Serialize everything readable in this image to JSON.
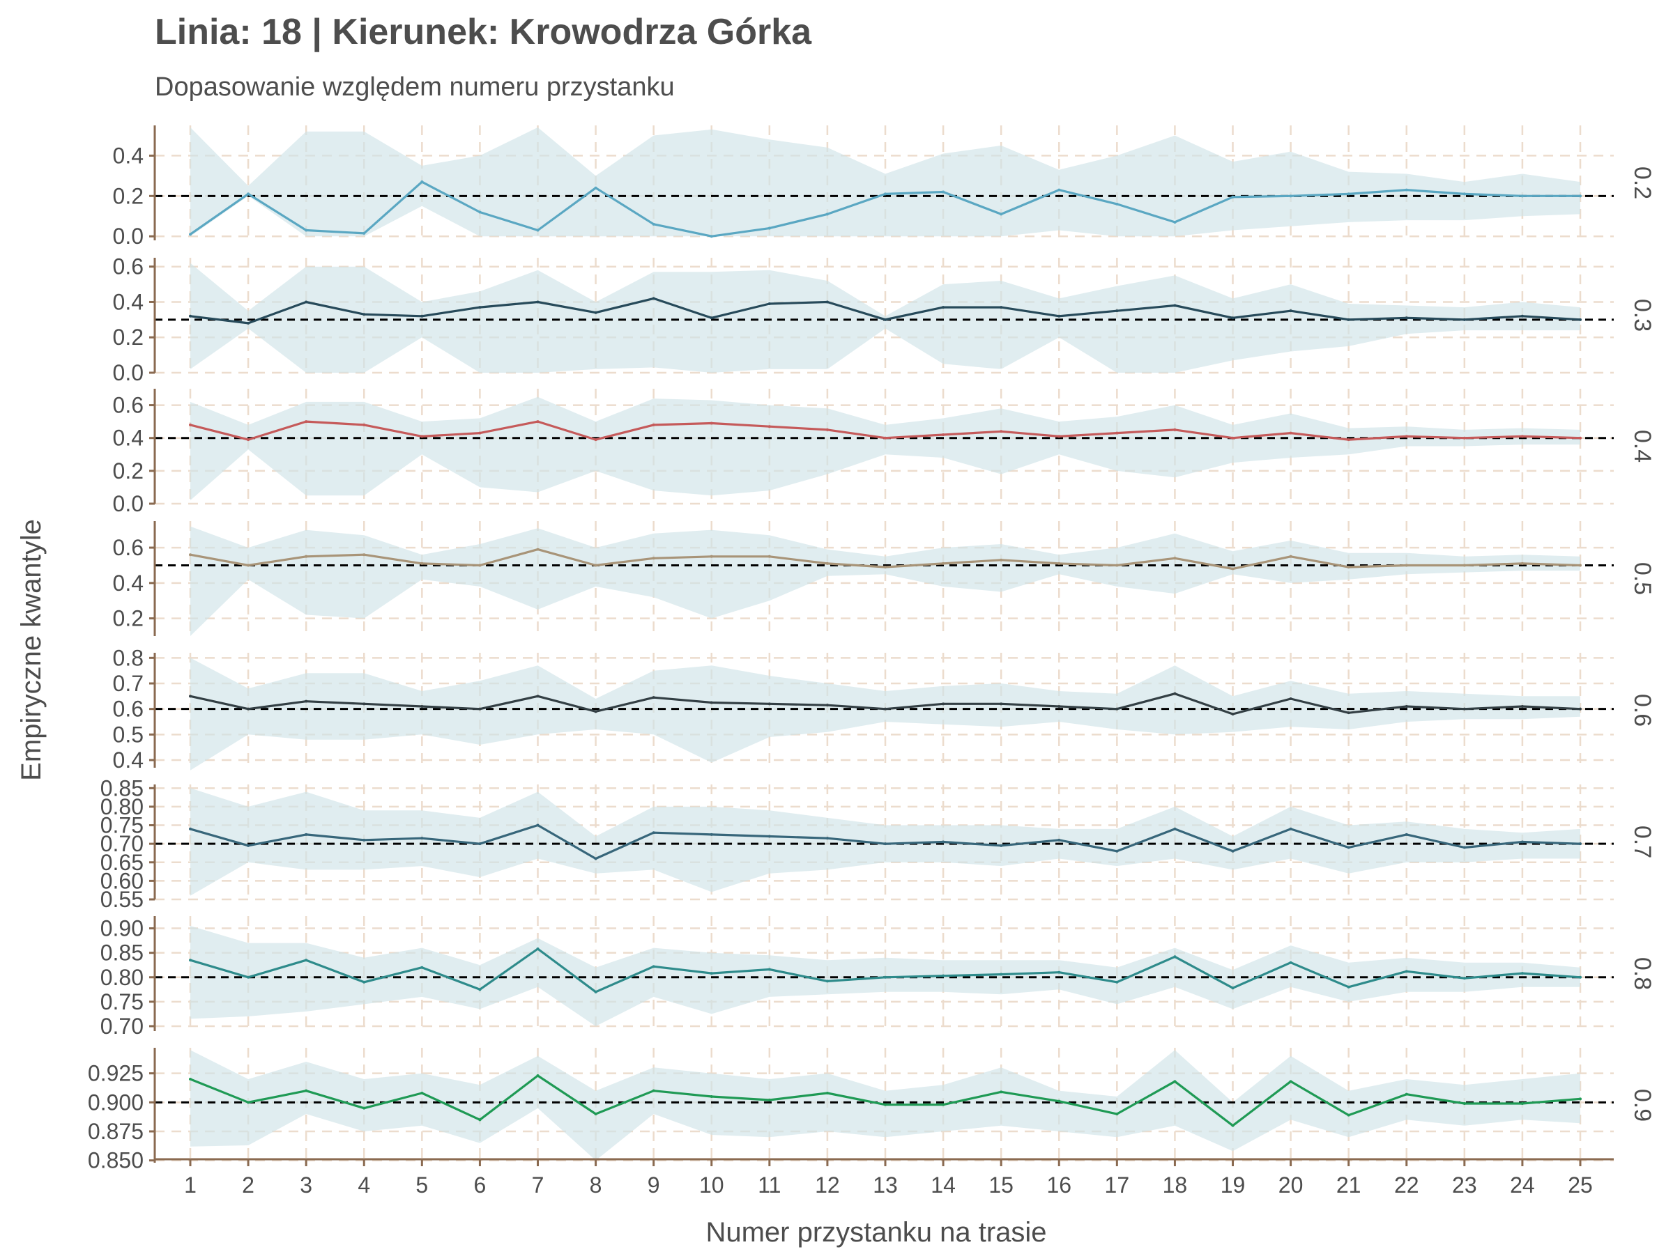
{
  "title": "Linia: 18 | Kierunek: Krowodrza Górka",
  "subtitle": "Dopasowanie względem numeru przystanku",
  "chart_data": {
    "type": "line",
    "xlabel": "Numer przystanku na trasie",
    "ylabel": "Empiryczne kwantyle",
    "x": [
      1,
      2,
      3,
      4,
      5,
      6,
      7,
      8,
      9,
      10,
      11,
      12,
      13,
      14,
      15,
      16,
      17,
      18,
      19,
      20,
      21,
      22,
      23,
      24,
      25
    ],
    "grid": true,
    "band_color": "#cfe3e8",
    "reference_line": "dashed, y equals facet quantile",
    "panels": [
      {
        "facet_label": "0.2",
        "reference": 0.2,
        "color": "#5aa7c2",
        "ylim": [
          -0.02,
          0.55
        ],
        "yticks": [
          "0.0",
          "0.2",
          "0.4"
        ],
        "ytick_values": [
          0.0,
          0.2,
          0.4
        ],
        "values": [
          0.01,
          0.21,
          0.03,
          0.015,
          0.27,
          0.12,
          0.03,
          0.24,
          0.06,
          0.0,
          0.04,
          0.11,
          0.21,
          0.22,
          0.11,
          0.23,
          0.16,
          0.07,
          0.195,
          0.2,
          0.21,
          0.23,
          0.21,
          0.2,
          0.2
        ],
        "band_low": [
          0.0,
          0.2,
          0.0,
          0.0,
          0.15,
          0.0,
          0.0,
          0.0,
          0.0,
          0.0,
          0.0,
          0.0,
          0.0,
          0.0,
          0.0,
          0.03,
          0.0,
          0.0,
          0.03,
          0.05,
          0.07,
          0.08,
          0.08,
          0.1,
          0.11
        ],
        "band_high": [
          0.54,
          0.25,
          0.52,
          0.52,
          0.35,
          0.4,
          0.54,
          0.3,
          0.5,
          0.53,
          0.48,
          0.44,
          0.31,
          0.41,
          0.45,
          0.33,
          0.4,
          0.5,
          0.37,
          0.42,
          0.32,
          0.31,
          0.27,
          0.31,
          0.27
        ]
      },
      {
        "facet_label": "0.3",
        "reference": 0.3,
        "color": "#274a5a",
        "ylim": [
          0.0,
          0.65
        ],
        "yticks": [
          "0.0",
          "0.2",
          "0.4",
          "0.6"
        ],
        "ytick_values": [
          0.0,
          0.2,
          0.4,
          0.6
        ],
        "values": [
          0.32,
          0.28,
          0.4,
          0.33,
          0.32,
          0.37,
          0.4,
          0.34,
          0.42,
          0.31,
          0.39,
          0.4,
          0.3,
          0.37,
          0.37,
          0.32,
          0.35,
          0.38,
          0.31,
          0.35,
          0.3,
          0.31,
          0.3,
          0.32,
          0.3
        ],
        "band_low": [
          0.02,
          0.25,
          0.0,
          0.0,
          0.2,
          0.0,
          0.0,
          0.02,
          0.03,
          0.0,
          0.02,
          0.02,
          0.25,
          0.05,
          0.02,
          0.2,
          0.0,
          0.0,
          0.07,
          0.12,
          0.15,
          0.22,
          0.24,
          0.24,
          0.24
        ],
        "band_high": [
          0.62,
          0.35,
          0.6,
          0.6,
          0.4,
          0.46,
          0.58,
          0.4,
          0.57,
          0.57,
          0.58,
          0.52,
          0.32,
          0.5,
          0.52,
          0.42,
          0.49,
          0.55,
          0.42,
          0.5,
          0.39,
          0.38,
          0.37,
          0.4,
          0.37
        ]
      },
      {
        "facet_label": "0.4",
        "reference": 0.4,
        "color": "#c55a5a",
        "ylim": [
          0.0,
          0.7
        ],
        "yticks": [
          "0.0",
          "0.2",
          "0.4",
          "0.6"
        ],
        "ytick_values": [
          0.0,
          0.2,
          0.4,
          0.6
        ],
        "values": [
          0.48,
          0.39,
          0.5,
          0.48,
          0.41,
          0.43,
          0.5,
          0.39,
          0.48,
          0.49,
          0.47,
          0.45,
          0.4,
          0.42,
          0.44,
          0.41,
          0.43,
          0.45,
          0.4,
          0.43,
          0.39,
          0.41,
          0.4,
          0.41,
          0.4
        ],
        "band_low": [
          0.02,
          0.33,
          0.05,
          0.05,
          0.3,
          0.1,
          0.07,
          0.2,
          0.08,
          0.05,
          0.08,
          0.18,
          0.3,
          0.28,
          0.18,
          0.3,
          0.2,
          0.16,
          0.25,
          0.28,
          0.3,
          0.35,
          0.35,
          0.36,
          0.36
        ],
        "band_high": [
          0.62,
          0.48,
          0.62,
          0.62,
          0.5,
          0.52,
          0.65,
          0.5,
          0.64,
          0.63,
          0.6,
          0.58,
          0.48,
          0.52,
          0.58,
          0.5,
          0.53,
          0.6,
          0.48,
          0.55,
          0.46,
          0.47,
          0.45,
          0.46,
          0.45
        ]
      },
      {
        "facet_label": "0.5",
        "reference": 0.5,
        "color": "#a89478",
        "ylim": [
          0.1,
          0.75
        ],
        "yticks": [
          "0.2",
          "0.4",
          "0.6"
        ],
        "ytick_values": [
          0.2,
          0.4,
          0.6
        ],
        "values": [
          0.56,
          0.5,
          0.55,
          0.56,
          0.51,
          0.5,
          0.59,
          0.5,
          0.54,
          0.55,
          0.55,
          0.51,
          0.49,
          0.51,
          0.53,
          0.51,
          0.5,
          0.54,
          0.48,
          0.55,
          0.49,
          0.5,
          0.5,
          0.51,
          0.5
        ],
        "band_low": [
          0.1,
          0.42,
          0.22,
          0.2,
          0.42,
          0.38,
          0.25,
          0.38,
          0.32,
          0.2,
          0.3,
          0.44,
          0.45,
          0.38,
          0.35,
          0.45,
          0.38,
          0.34,
          0.45,
          0.4,
          0.42,
          0.45,
          0.46,
          0.47,
          0.47
        ],
        "band_high": [
          0.72,
          0.6,
          0.7,
          0.67,
          0.56,
          0.62,
          0.71,
          0.6,
          0.68,
          0.7,
          0.67,
          0.59,
          0.55,
          0.6,
          0.62,
          0.56,
          0.6,
          0.68,
          0.58,
          0.64,
          0.57,
          0.57,
          0.55,
          0.56,
          0.55
        ]
      },
      {
        "facet_label": "0.6",
        "reference": 0.6,
        "color": "#333f44",
        "ylim": [
          0.37,
          0.82
        ],
        "yticks": [
          "0.4",
          "0.5",
          "0.6",
          "0.7",
          "0.8"
        ],
        "ytick_values": [
          0.4,
          0.5,
          0.6,
          0.7,
          0.8
        ],
        "values": [
          0.65,
          0.6,
          0.63,
          0.62,
          0.61,
          0.6,
          0.65,
          0.59,
          0.645,
          0.625,
          0.62,
          0.615,
          0.6,
          0.62,
          0.62,
          0.61,
          0.6,
          0.66,
          0.58,
          0.64,
          0.585,
          0.61,
          0.6,
          0.61,
          0.6
        ],
        "band_low": [
          0.36,
          0.5,
          0.48,
          0.48,
          0.5,
          0.46,
          0.5,
          0.52,
          0.5,
          0.39,
          0.49,
          0.51,
          0.55,
          0.54,
          0.53,
          0.55,
          0.52,
          0.5,
          0.51,
          0.53,
          0.52,
          0.55,
          0.56,
          0.56,
          0.57
        ],
        "band_high": [
          0.8,
          0.68,
          0.74,
          0.74,
          0.67,
          0.71,
          0.77,
          0.64,
          0.75,
          0.77,
          0.73,
          0.7,
          0.67,
          0.69,
          0.7,
          0.67,
          0.66,
          0.77,
          0.65,
          0.71,
          0.66,
          0.67,
          0.66,
          0.65,
          0.65
        ]
      },
      {
        "facet_label": "0.7",
        "reference": 0.7,
        "color": "#37667a",
        "ylim": [
          0.55,
          0.86
        ],
        "yticks": [
          "0.55",
          "0.60",
          "0.65",
          "0.70",
          "0.75",
          "0.80",
          "0.85"
        ],
        "ytick_values": [
          0.55,
          0.6,
          0.65,
          0.7,
          0.75,
          0.8,
          0.85
        ],
        "values": [
          0.74,
          0.695,
          0.725,
          0.71,
          0.715,
          0.7,
          0.75,
          0.66,
          0.73,
          0.725,
          0.72,
          0.715,
          0.7,
          0.705,
          0.695,
          0.71,
          0.68,
          0.74,
          0.68,
          0.74,
          0.69,
          0.725,
          0.69,
          0.705,
          0.7
        ],
        "band_low": [
          0.56,
          0.65,
          0.63,
          0.63,
          0.64,
          0.61,
          0.66,
          0.62,
          0.63,
          0.57,
          0.62,
          0.63,
          0.65,
          0.65,
          0.64,
          0.66,
          0.64,
          0.66,
          0.63,
          0.66,
          0.62,
          0.65,
          0.65,
          0.66,
          0.66
        ],
        "band_high": [
          0.85,
          0.8,
          0.84,
          0.79,
          0.79,
          0.77,
          0.84,
          0.72,
          0.8,
          0.8,
          0.79,
          0.77,
          0.75,
          0.75,
          0.75,
          0.74,
          0.74,
          0.8,
          0.72,
          0.8,
          0.75,
          0.76,
          0.74,
          0.73,
          0.74
        ]
      },
      {
        "facet_label": "0.8",
        "reference": 0.8,
        "color": "#2e8b8b",
        "ylim": [
          0.69,
          0.925
        ],
        "yticks": [
          "0.70",
          "0.75",
          "0.80",
          "0.85",
          "0.90"
        ],
        "ytick_values": [
          0.7,
          0.75,
          0.8,
          0.85,
          0.9
        ],
        "values": [
          0.835,
          0.8,
          0.835,
          0.79,
          0.82,
          0.775,
          0.858,
          0.77,
          0.822,
          0.808,
          0.816,
          0.792,
          0.8,
          0.803,
          0.806,
          0.81,
          0.79,
          0.842,
          0.778,
          0.83,
          0.78,
          0.812,
          0.798,
          0.808,
          0.8
        ],
        "band_low": [
          0.715,
          0.72,
          0.73,
          0.745,
          0.76,
          0.735,
          0.78,
          0.7,
          0.76,
          0.725,
          0.76,
          0.765,
          0.77,
          0.77,
          0.765,
          0.775,
          0.745,
          0.78,
          0.735,
          0.78,
          0.75,
          0.77,
          0.77,
          0.78,
          0.78
        ],
        "band_high": [
          0.905,
          0.87,
          0.87,
          0.84,
          0.86,
          0.825,
          0.88,
          0.82,
          0.86,
          0.85,
          0.845,
          0.835,
          0.84,
          0.835,
          0.835,
          0.835,
          0.82,
          0.86,
          0.815,
          0.865,
          0.83,
          0.84,
          0.83,
          0.83,
          0.82
        ]
      },
      {
        "facet_label": "0.9",
        "reference": 0.9,
        "color": "#1f9a55",
        "ylim": [
          0.848,
          0.947
        ],
        "yticks": [
          "0.850",
          "0.875",
          "0.900",
          "0.925"
        ],
        "ytick_values": [
          0.85,
          0.875,
          0.9,
          0.925
        ],
        "values": [
          0.92,
          0.9,
          0.91,
          0.895,
          0.908,
          0.885,
          0.923,
          0.89,
          0.91,
          0.905,
          0.902,
          0.908,
          0.898,
          0.898,
          0.909,
          0.901,
          0.89,
          0.918,
          0.88,
          0.918,
          0.889,
          0.907,
          0.899,
          0.899,
          0.903
        ],
        "band_low": [
          0.862,
          0.863,
          0.89,
          0.875,
          0.88,
          0.865,
          0.895,
          0.85,
          0.89,
          0.872,
          0.87,
          0.875,
          0.87,
          0.875,
          0.88,
          0.875,
          0.87,
          0.88,
          0.858,
          0.885,
          0.87,
          0.885,
          0.88,
          0.885,
          0.882
        ],
        "band_high": [
          0.945,
          0.92,
          0.935,
          0.92,
          0.925,
          0.915,
          0.94,
          0.91,
          0.93,
          0.925,
          0.92,
          0.925,
          0.91,
          0.915,
          0.93,
          0.91,
          0.905,
          0.945,
          0.9,
          0.94,
          0.91,
          0.92,
          0.915,
          0.92,
          0.925
        ]
      }
    ]
  }
}
